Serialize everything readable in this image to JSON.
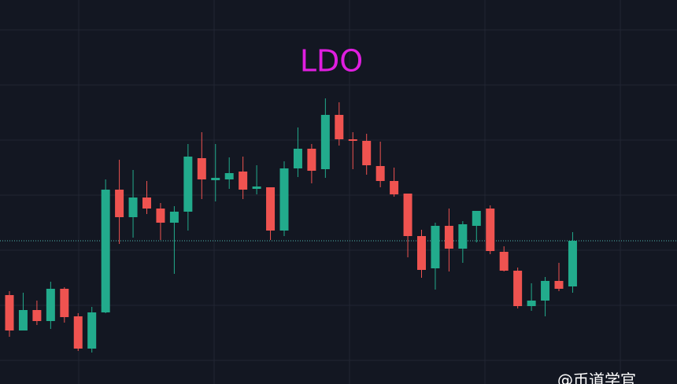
{
  "chart_data": {
    "type": "candlestick",
    "title": "LDO",
    "open": [
      113,
      68,
      94,
      80,
      121,
      86,
      45,
      91,
      247,
      212,
      237,
      223,
      205,
      219,
      287,
      259,
      260,
      270,
      248,
      250,
      195,
      274,
      299,
      273,
      342,
      311,
      309,
      277,
      258,
      242,
      188,
      147,
      201,
      172,
      201,
      223,
      168,
      144,
      99,
      106,
      131,
      124
    ],
    "high": [
      118,
      116,
      106,
      130,
      123,
      90,
      98,
      260,
      285,
      272,
      258,
      230,
      226,
      305,
      320,
      305,
      288,
      289,
      278,
      250,
      283,
      326,
      305,
      363,
      358,
      320,
      318,
      308,
      275,
      242,
      196,
      205,
      223,
      207,
      220,
      227,
      175,
      148,
      128,
      136,
      154,
      193
    ],
    "low": [
      60,
      68,
      75,
      70,
      78,
      42,
      40,
      90,
      178,
      186,
      216,
      183,
      140,
      195,
      235,
      232,
      248,
      235,
      241,
      183,
      188,
      263,
      255,
      262,
      303,
      273,
      266,
      250,
      238,
      161,
      135,
      120,
      143,
      154,
      180,
      165,
      143,
      96,
      93,
      86,
      118,
      116
    ],
    "close": [
      68,
      94,
      80,
      121,
      85,
      45,
      91,
      247,
      212,
      237,
      223,
      205,
      219,
      289,
      260,
      262,
      268,
      247,
      251,
      195,
      274,
      299,
      271,
      342,
      311,
      309,
      278,
      258,
      241,
      188,
      145,
      201,
      172,
      203,
      220,
      169,
      144,
      99,
      106,
      131,
      121,
      182
    ],
    "up_color": "#22ab8c",
    "down_color": "#ef5350",
    "title_color": "#e01ee0",
    "price_line_color": "#4fb9b0",
    "ylim": [
      0,
      488
    ],
    "watermark": "@币道学官"
  }
}
